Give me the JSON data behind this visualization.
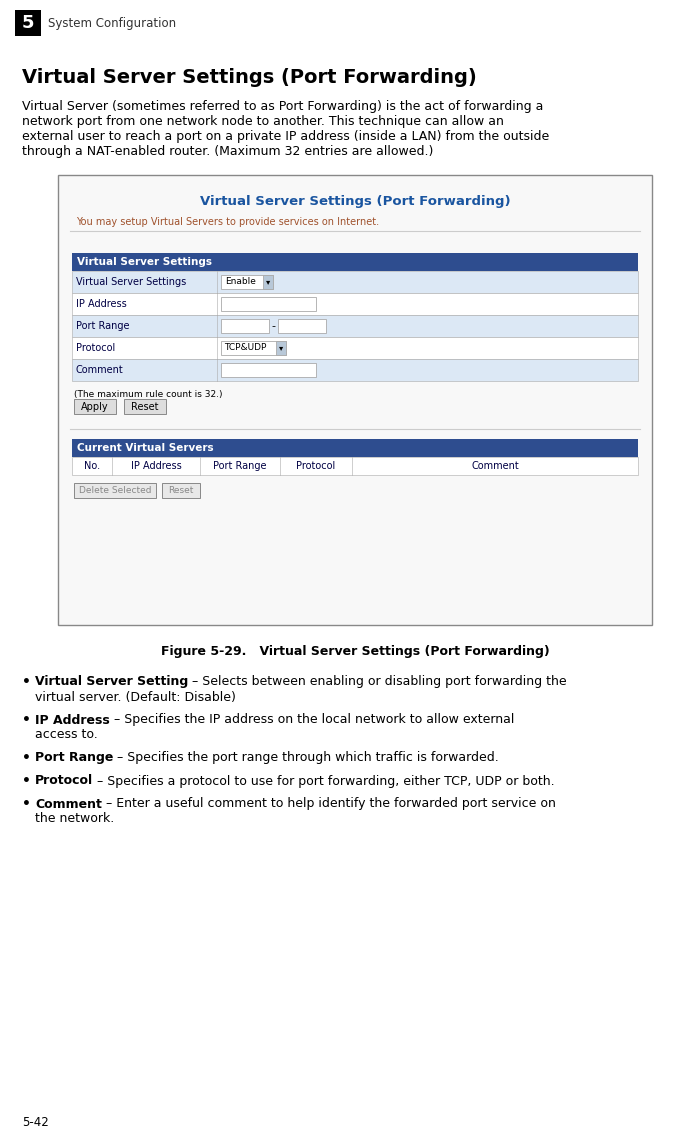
{
  "page_num": "5",
  "page_num_bottom": "5-42",
  "section_label": "System Configuration",
  "main_title": "Virtual Server Settings (Port Forwarding)",
  "intro_lines": [
    "Virtual Server (sometimes referred to as Port Forwarding) is the act of forwarding a",
    "network port from one network node to another. This technique can allow an",
    "external user to reach a port on a private IP address (inside a LAN) from the outside",
    "through a NAT-enabled router. (Maximum 32 entries are allowed.)"
  ],
  "figure_caption": "Figure 5-29.   Virtual Server Settings (Port Forwarding)",
  "web_title": "Virtual Server Settings (Port Forwarding)",
  "web_subtitle": "You may setup Virtual Servers to provide services on Internet.",
  "table1_header": "Virtual Server Settings",
  "table1_rows": [
    [
      "Virtual Server Settings",
      "enable_dropdown"
    ],
    [
      "IP Address",
      "input_box"
    ],
    [
      "Port Range",
      "port_range"
    ],
    [
      "Protocol",
      "protocol_dropdown"
    ],
    [
      "Comment",
      "input_box"
    ]
  ],
  "table_note": "(The maximum rule count is 32.)",
  "btn1": "Apply",
  "btn2": "Reset",
  "table2_header": "Current Virtual Servers",
  "table2_cols": [
    "No.",
    "IP Address",
    "Port Range",
    "Protocol",
    "Comment"
  ],
  "btn3": "Delete Selected",
  "btn4": "Reset",
  "bullet_items": [
    {
      "bold": "Virtual Server Setting",
      "normal_lines": [
        " – Selects between enabling or disabling port forwarding the",
        "virtual server. (Default: Disable)"
      ]
    },
    {
      "bold": "IP Address",
      "normal_lines": [
        " – Specifies the IP address on the local network to allow external",
        "access to."
      ]
    },
    {
      "bold": "Port Range",
      "normal_lines": [
        " – Specifies the port range through which traffic is forwarded."
      ]
    },
    {
      "bold": "Protocol",
      "normal_lines": [
        " – Specifies a protocol to use for port forwarding, either TCP, UDP or both."
      ]
    },
    {
      "bold": "Comment",
      "normal_lines": [
        " – Enter a useful comment to help identify the forwarded port service on",
        "the network."
      ]
    }
  ],
  "header_blue": "#2e4d8f",
  "web_title_color": "#1a55a0",
  "web_subtitle_color": "#a0522d",
  "table_row_light": "#dce8f5",
  "table_row_white": "#ffffff",
  "border_color": "#aaaaaa",
  "box_bg": "#f8f8f8",
  "box_border": "#888888",
  "btn_bg": "#dddddd",
  "btn_border": "#888888",
  "text_dark": "#000000",
  "text_table": "#000044"
}
